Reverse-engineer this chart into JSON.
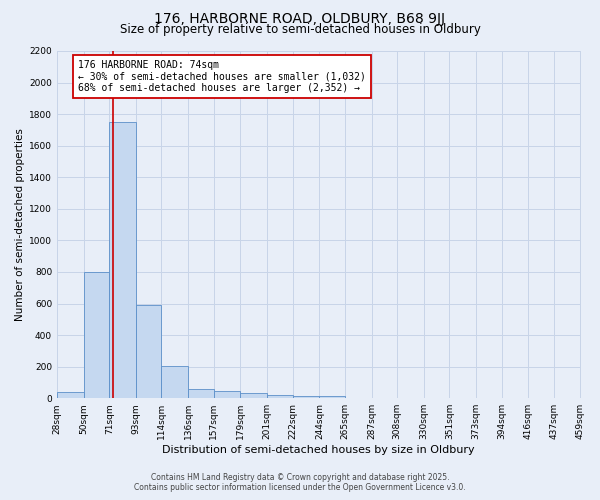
{
  "title1": "176, HARBORNE ROAD, OLDBURY, B68 9JJ",
  "title2": "Size of property relative to semi-detached houses in Oldbury",
  "xlabel": "Distribution of semi-detached houses by size in Oldbury",
  "ylabel": "Number of semi-detached properties",
  "bin_labels": [
    "28sqm",
    "50sqm",
    "71sqm",
    "93sqm",
    "114sqm",
    "136sqm",
    "157sqm",
    "179sqm",
    "201sqm",
    "222sqm",
    "244sqm",
    "265sqm",
    "287sqm",
    "308sqm",
    "330sqm",
    "351sqm",
    "373sqm",
    "394sqm",
    "416sqm",
    "437sqm",
    "459sqm"
  ],
  "bin_edges": [
    28,
    50,
    71,
    93,
    114,
    136,
    157,
    179,
    201,
    222,
    244,
    265,
    287,
    308,
    330,
    351,
    373,
    394,
    416,
    437,
    459
  ],
  "values": [
    40,
    800,
    1750,
    590,
    205,
    60,
    45,
    35,
    20,
    15,
    15,
    0,
    0,
    0,
    0,
    0,
    0,
    0,
    0,
    0
  ],
  "bar_color": "#c5d8f0",
  "bar_edge_color": "#5b8fc9",
  "grid_color": "#c8d4e8",
  "bg_color": "#e8eef8",
  "property_size": 74,
  "red_line_color": "#cc0000",
  "annotation_line1": "176 HARBORNE ROAD: 74sqm",
  "annotation_line2": "← 30% of semi-detached houses are smaller (1,032)",
  "annotation_line3": "68% of semi-detached houses are larger (2,352) →",
  "annotation_box_color": "#ffffff",
  "annotation_border_color": "#cc0000",
  "footer1": "Contains HM Land Registry data © Crown copyright and database right 2025.",
  "footer2": "Contains public sector information licensed under the Open Government Licence v3.0.",
  "ylim": [
    0,
    2200
  ],
  "yticks": [
    0,
    200,
    400,
    600,
    800,
    1000,
    1200,
    1400,
    1600,
    1800,
    2000,
    2200
  ],
  "title1_fontsize": 10,
  "title2_fontsize": 8.5,
  "tick_fontsize": 6.5,
  "ylabel_fontsize": 7.5,
  "xlabel_fontsize": 8,
  "annot_fontsize": 7,
  "footer_fontsize": 5.5
}
